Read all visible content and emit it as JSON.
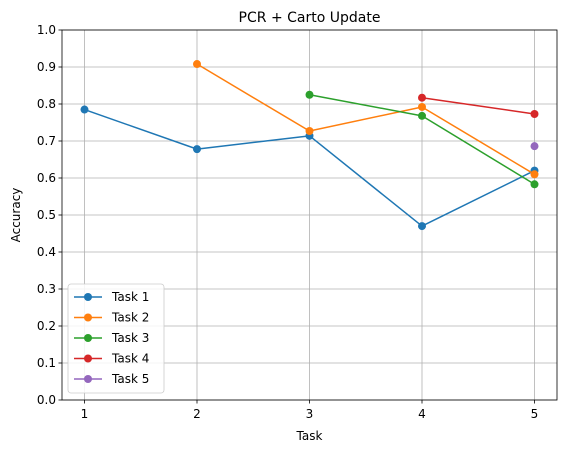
{
  "chart_data": {
    "type": "line",
    "title": "PCR + Carto Update",
    "xlabel": "Task",
    "ylabel": "Accuracy",
    "x": [
      1,
      2,
      3,
      4,
      5
    ],
    "x_ticks": [
      "1",
      "2",
      "3",
      "4",
      "5"
    ],
    "xlim": [
      0.8,
      5.2
    ],
    "ylim": [
      0.0,
      1.0
    ],
    "y_ticks": [
      "0.0",
      "0.1",
      "0.2",
      "0.3",
      "0.4",
      "0.5",
      "0.6",
      "0.7",
      "0.8",
      "0.9",
      "1.0"
    ],
    "grid": true,
    "legend_position": "lower-left",
    "series": [
      {
        "name": "Task 1",
        "color": "#1f77b4",
        "x": [
          1,
          2,
          3,
          4,
          5
        ],
        "values": [
          0.785,
          0.678,
          0.714,
          0.47,
          0.62
        ]
      },
      {
        "name": "Task 2",
        "color": "#ff7f0e",
        "x": [
          2,
          3,
          4,
          5
        ],
        "values": [
          0.908,
          0.727,
          0.792,
          0.61
        ]
      },
      {
        "name": "Task 3",
        "color": "#2ca02c",
        "x": [
          3,
          4,
          5
        ],
        "values": [
          0.825,
          0.768,
          0.583
        ]
      },
      {
        "name": "Task 4",
        "color": "#d62728",
        "x": [
          4,
          5
        ],
        "values": [
          0.817,
          0.773
        ]
      },
      {
        "name": "Task 5",
        "color": "#9467bd",
        "x": [
          5
        ],
        "values": [
          0.686
        ]
      }
    ]
  }
}
